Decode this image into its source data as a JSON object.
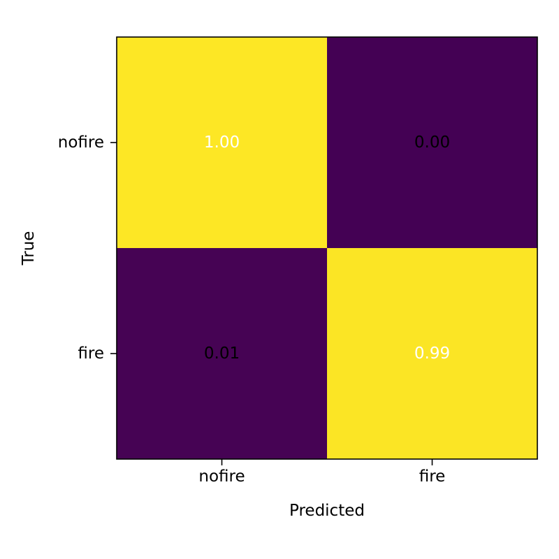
{
  "chart_data": {
    "type": "heatmap",
    "title": "",
    "xlabel": "Predicted",
    "ylabel": "True",
    "x_categories": [
      "nofire",
      "fire"
    ],
    "y_categories": [
      "nofire",
      "fire"
    ],
    "values": [
      [
        1.0,
        0.0
      ],
      [
        0.01,
        0.99
      ]
    ],
    "value_labels": [
      [
        "1.00",
        "0.00"
      ],
      [
        "0.01",
        "0.99"
      ]
    ],
    "colormap": "viridis",
    "color_range": [
      0,
      1
    ],
    "colors": {
      "low": "#440154",
      "high": "#fde725",
      "text_on_high": "#ffffff",
      "text_on_low": "#000000",
      "frame": "#000000"
    },
    "grid": false,
    "legend": "none"
  }
}
